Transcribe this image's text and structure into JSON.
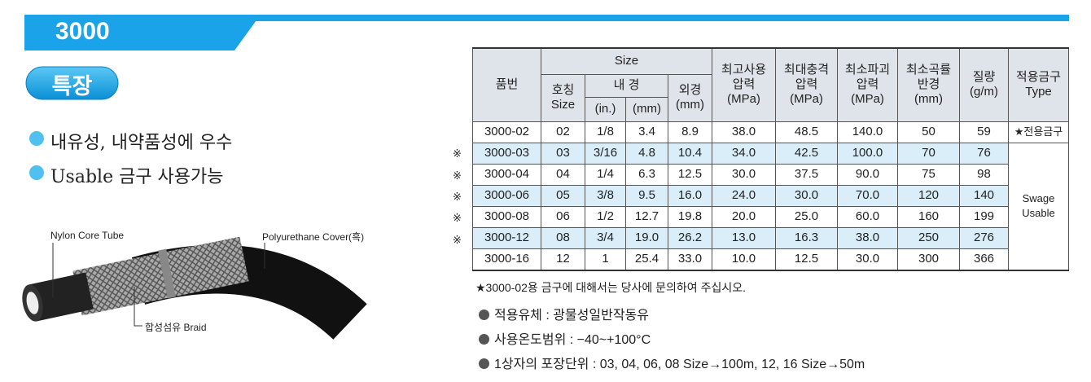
{
  "header": {
    "title": "3000"
  },
  "features": {
    "badge": "특장",
    "items": [
      "내유성, 내약품성에 우수",
      "Usable 금구 사용가능"
    ]
  },
  "diagram": {
    "labels": [
      "Nylon Core Tube",
      "Polyurethane Cover(흑)",
      "합성섬유 Braid"
    ]
  },
  "table": {
    "head": {
      "part_no": "품번",
      "size": "Size",
      "nominal": [
        "호칭",
        "Size"
      ],
      "inner": "내 경",
      "inch": "(in.)",
      "mm": "(mm)",
      "outer": [
        "외경",
        "(mm)"
      ],
      "max_pressure": [
        "최고사용",
        "압력",
        "(MPa)"
      ],
      "impulse_pressure": [
        "최대충격",
        "압력",
        "(MPa)"
      ],
      "burst_pressure": [
        "최소파괴",
        "압력",
        "(MPa)"
      ],
      "bend_radius": [
        "최소곡률",
        "반경",
        "(mm)"
      ],
      "weight": [
        "질량",
        "(g/m)"
      ],
      "fitting": [
        "적용금구",
        "Type"
      ]
    },
    "rows": [
      {
        "cells": [
          "3000-02",
          "02",
          "1/8",
          "3.4",
          "8.9",
          "38.0",
          "48.5",
          "140.0",
          "50",
          "59"
        ]
      },
      {
        "mark": "※",
        "cells": [
          "3000-03",
          "03",
          "3/16",
          "4.8",
          "10.4",
          "34.0",
          "42.5",
          "100.0",
          "70",
          "76"
        ]
      },
      {
        "mark": "※",
        "cells": [
          "3000-04",
          "04",
          "1/4",
          "6.3",
          "12.5",
          "30.0",
          "37.5",
          "90.0",
          "75",
          "98"
        ]
      },
      {
        "mark": "※",
        "cells": [
          "3000-06",
          "05",
          "3/8",
          "9.5",
          "16.0",
          "24.0",
          "30.0",
          "70.0",
          "120",
          "140"
        ]
      },
      {
        "mark": "※",
        "cells": [
          "3000-08",
          "06",
          "1/2",
          "12.7",
          "19.8",
          "20.0",
          "25.0",
          "60.0",
          "160",
          "199"
        ]
      },
      {
        "mark": "※",
        "cells": [
          "3000-12",
          "08",
          "3/4",
          "19.0",
          "26.2",
          "13.0",
          "16.3",
          "38.0",
          "250",
          "276"
        ]
      },
      {
        "cells": [
          "3000-16",
          "12",
          "1",
          "25.4",
          "33.0",
          "10.0",
          "12.5",
          "30.0",
          "300",
          "366"
        ]
      }
    ],
    "type_labels": [
      "★전용금구",
      [
        "Swage",
        "Usable"
      ]
    ]
  },
  "notes": [
    "★3000-02용 금구에 대해서는 당사에 문의하여 주십시오.",
    "적용유체 : 광물성일반작동유",
    "사용온도범위 : −40~+100°C",
    "1상자의 포장단위 : 03, 04, 06, 08 Size→100m, 12, 16 Size→50m"
  ]
}
